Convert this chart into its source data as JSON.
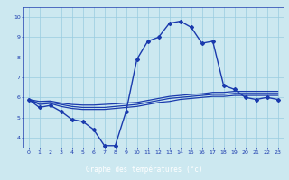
{
  "xlabel": "Graphe des températures (°c)",
  "bg_color": "#cce8f0",
  "line_color": "#1a3aad",
  "grid_color": "#99cce0",
  "xlabel_bg": "#1a3aad",
  "xlabel_fg": "#ffffff",
  "xlim": [
    -0.5,
    23.5
  ],
  "ylim": [
    3.5,
    10.5
  ],
  "yticks": [
    4,
    5,
    6,
    7,
    8,
    9,
    10
  ],
  "xticks": [
    0,
    1,
    2,
    3,
    4,
    5,
    6,
    7,
    8,
    9,
    10,
    11,
    12,
    13,
    14,
    15,
    16,
    17,
    18,
    19,
    20,
    21,
    22,
    23
  ],
  "series": [
    {
      "x": [
        0,
        1,
        2,
        3,
        4,
        5,
        6,
        7,
        8,
        9,
        10,
        11,
        12,
        13,
        14,
        15,
        16,
        17,
        18,
        19,
        20,
        21,
        22,
        23
      ],
      "y": [
        5.9,
        5.5,
        5.6,
        5.3,
        4.9,
        4.8,
        4.4,
        3.6,
        3.6,
        5.3,
        7.9,
        8.8,
        9.0,
        9.7,
        9.8,
        9.5,
        8.7,
        8.8,
        6.6,
        6.4,
        6.0,
        5.9,
        6.0,
        5.9
      ],
      "marker": "D",
      "markersize": 2.0,
      "linewidth": 1.0
    },
    {
      "x": [
        0,
        1,
        2,
        3,
        4,
        5,
        6,
        7,
        8,
        9,
        10,
        11,
        12,
        13,
        14,
        15,
        16,
        17,
        18,
        19,
        20,
        21,
        22,
        23
      ],
      "y": [
        5.9,
        5.65,
        5.7,
        5.55,
        5.45,
        5.4,
        5.4,
        5.4,
        5.45,
        5.5,
        5.55,
        5.65,
        5.75,
        5.8,
        5.9,
        5.95,
        6.0,
        6.05,
        6.05,
        6.1,
        6.1,
        6.1,
        6.1,
        6.1
      ],
      "marker": null,
      "markersize": 0,
      "linewidth": 0.9
    },
    {
      "x": [
        0,
        1,
        2,
        3,
        4,
        5,
        6,
        7,
        8,
        9,
        10,
        11,
        12,
        13,
        14,
        15,
        16,
        17,
        18,
        19,
        20,
        21,
        22,
        23
      ],
      "y": [
        5.9,
        5.7,
        5.75,
        5.65,
        5.55,
        5.5,
        5.5,
        5.5,
        5.55,
        5.6,
        5.65,
        5.75,
        5.85,
        5.95,
        6.0,
        6.05,
        6.1,
        6.15,
        6.15,
        6.2,
        6.2,
        6.2,
        6.2,
        6.2
      ],
      "marker": null,
      "markersize": 0,
      "linewidth": 0.9
    },
    {
      "x": [
        0,
        1,
        2,
        3,
        4,
        5,
        6,
        7,
        8,
        9,
        10,
        11,
        12,
        13,
        14,
        15,
        16,
        17,
        18,
        19,
        20,
        21,
        22,
        23
      ],
      "y": [
        5.9,
        5.8,
        5.82,
        5.72,
        5.65,
        5.62,
        5.62,
        5.65,
        5.68,
        5.72,
        5.75,
        5.85,
        5.95,
        6.05,
        6.1,
        6.15,
        6.18,
        6.25,
        6.25,
        6.3,
        6.3,
        6.3,
        6.3,
        6.3
      ],
      "marker": null,
      "markersize": 0,
      "linewidth": 0.9
    }
  ]
}
